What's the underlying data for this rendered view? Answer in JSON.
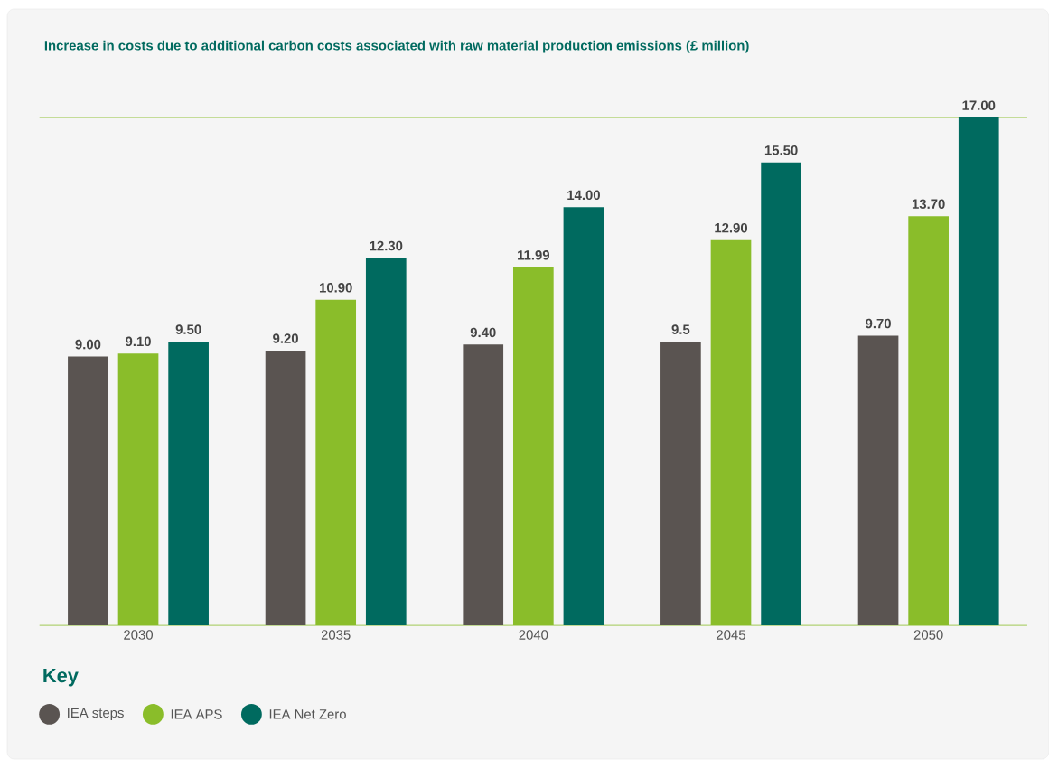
{
  "chart_data": {
    "type": "bar",
    "title": "Increase in costs due to additional carbon costs associated with raw material production emissions (£ million)",
    "categories": [
      "2030",
      "2035",
      "2040",
      "2045",
      "2050"
    ],
    "series": [
      {
        "name": "IEA steps",
        "color": "#5a5451",
        "values": [
          9.0,
          9.2,
          9.4,
          9.5,
          9.7
        ],
        "value_labels": [
          "9.00",
          "9.20",
          "9.40",
          "9.5",
          "9.70"
        ]
      },
      {
        "name": "IEA APS",
        "color": "#8abd2a",
        "values": [
          9.1,
          10.9,
          11.99,
          12.9,
          13.7
        ],
        "value_labels": [
          "9.10",
          "10.90",
          "11.99",
          "12.90",
          "13.70"
        ]
      },
      {
        "name": "IEA Net Zero",
        "color": "#006a5f",
        "values": [
          9.5,
          12.3,
          14.0,
          15.5,
          17.0
        ],
        "value_labels": [
          "9.50",
          "12.30",
          "14.00",
          "15.50",
          "17.00"
        ]
      }
    ],
    "ylim": [
      0,
      17
    ],
    "tick_labels": "x",
    "legend": "bottom",
    "legend_title": "Key"
  }
}
